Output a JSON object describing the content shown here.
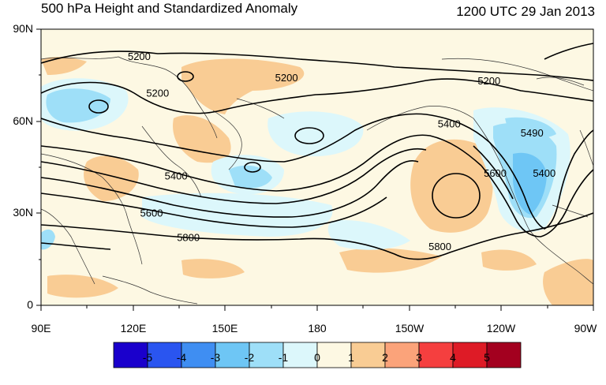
{
  "header": {
    "title": "500 hPa Height and Standardized Anomaly",
    "timestamp": "1200 UTC 29 Jan 2013"
  },
  "axes": {
    "lat_ticks": [
      {
        "label": "90N",
        "lat": 90
      },
      {
        "label": "60N",
        "lat": 60
      },
      {
        "label": "30N",
        "lat": 30
      },
      {
        "label": "0",
        "lat": 0
      }
    ],
    "lon_ticks": [
      {
        "label": "90E",
        "lon": 90
      },
      {
        "label": "120E",
        "lon": 120
      },
      {
        "label": "150E",
        "lon": 150
      },
      {
        "label": "180",
        "lon": 180
      },
      {
        "label": "150W",
        "lon": 210
      },
      {
        "label": "120W",
        "lon": 240
      },
      {
        "label": "90W",
        "lon": 270
      }
    ]
  },
  "contour_labels": [
    {
      "text": "5200",
      "lon": 122,
      "lat": 81
    },
    {
      "text": "5200",
      "lon": 170,
      "lat": 74
    },
    {
      "text": "5200",
      "lon": 236,
      "lat": 73
    },
    {
      "text": "5200",
      "lon": 128,
      "lat": 69
    },
    {
      "text": "5400",
      "lon": 223,
      "lat": 59
    },
    {
      "text": "5400",
      "lon": 134,
      "lat": 42
    },
    {
      "text": "5400",
      "lon": 254,
      "lat": 43
    },
    {
      "text": "5490",
      "lon": 250,
      "lat": 56
    },
    {
      "text": "5600",
      "lon": 126,
      "lat": 30
    },
    {
      "text": "5600",
      "lon": 238,
      "lat": 43
    },
    {
      "text": "5800",
      "lon": 138,
      "lat": 22
    },
    {
      "text": "5800",
      "lon": 220,
      "lat": 19
    }
  ],
  "colorbar": {
    "colors": [
      "#1a00cc",
      "#2a55f0",
      "#3f8ef2",
      "#6ec6f5",
      "#9edff8",
      "#dcf7fb",
      "#fdf8e3",
      "#f9cc94",
      "#fba37a",
      "#f53f3f",
      "#de1b26",
      "#a3001f"
    ],
    "labels": [
      "-5",
      "-4",
      "-3",
      "-2",
      "-1",
      "0",
      "1",
      "2",
      "3",
      "4",
      "5"
    ]
  },
  "legend_colors": {
    "background": "#fdf8e3",
    "pos_anomaly": "#f9cc94",
    "neg_anomaly_1": "#dcf7fb",
    "neg_anomaly_2": "#9edff8",
    "neg_anomaly_3": "#6ec6f5"
  }
}
